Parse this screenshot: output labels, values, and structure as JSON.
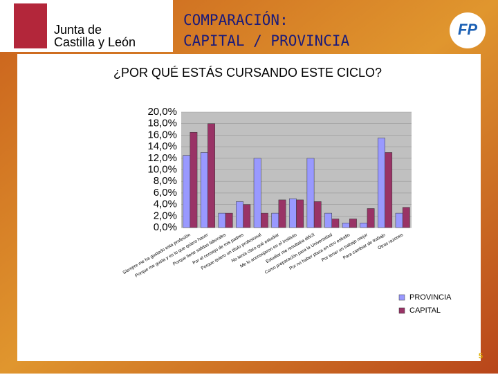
{
  "header": {
    "logo_line1": "Junta de",
    "logo_line2": "Castilla y León",
    "title_line1": "COMPARACIÓN:",
    "title_line2": "CAPITAL / PROVINCIA",
    "badge": "FP"
  },
  "chart_data": {
    "type": "bar",
    "title": "¿POR QUÉ ESTÁS CURSANDO ESTE CICLO?",
    "categories": [
      "Siempre me ha gustado esta profesión",
      "Porque me gusta y es lo que quiero hacer",
      "Porque tiene salidas laborales",
      "Por el consejo de mis padres",
      "Porque quiero un título profesional",
      "No tenía claro qué estudiar",
      "Me lo aconsejaron en el instituto",
      "Estudiar me resultaba difícil",
      "Como preparación para la Universidad",
      "Por no haber plaza en otro estudio",
      "Por tener un trabajo mejor",
      "Para cambiar de trabajo",
      "Otras razones"
    ],
    "series": [
      {
        "name": "PROVINCIA",
        "color": "#9999ff",
        "values": [
          12.5,
          13,
          2.5,
          4.5,
          12,
          2.5,
          5,
          12,
          2.5,
          0.8,
          0.8,
          15.5,
          2.5
        ]
      },
      {
        "name": "CAPITAL",
        "color": "#993366",
        "values": [
          16.5,
          18,
          2.5,
          4,
          2.5,
          4.8,
          4.8,
          4.5,
          1.5,
          1.5,
          3.3,
          13,
          3.5
        ]
      }
    ],
    "ylim": [
      0,
      20
    ],
    "yticks": [
      {
        "value": 0,
        "label": "0,0%"
      },
      {
        "value": 2,
        "label": "2,0%"
      },
      {
        "value": 4,
        "label": "4,0%"
      },
      {
        "value": 6,
        "label": "6,0%"
      },
      {
        "value": 8,
        "label": "8,0%"
      },
      {
        "value": 10,
        "label": "10,0%"
      },
      {
        "value": 12,
        "label": "12,0%"
      },
      {
        "value": 14,
        "label": "14,0%"
      },
      {
        "value": 16,
        "label": "16,0%"
      },
      {
        "value": 18,
        "label": "18,0%"
      },
      {
        "value": 20,
        "label": "20,0%"
      }
    ],
    "grid": true
  },
  "footer": {
    "page": "5"
  }
}
